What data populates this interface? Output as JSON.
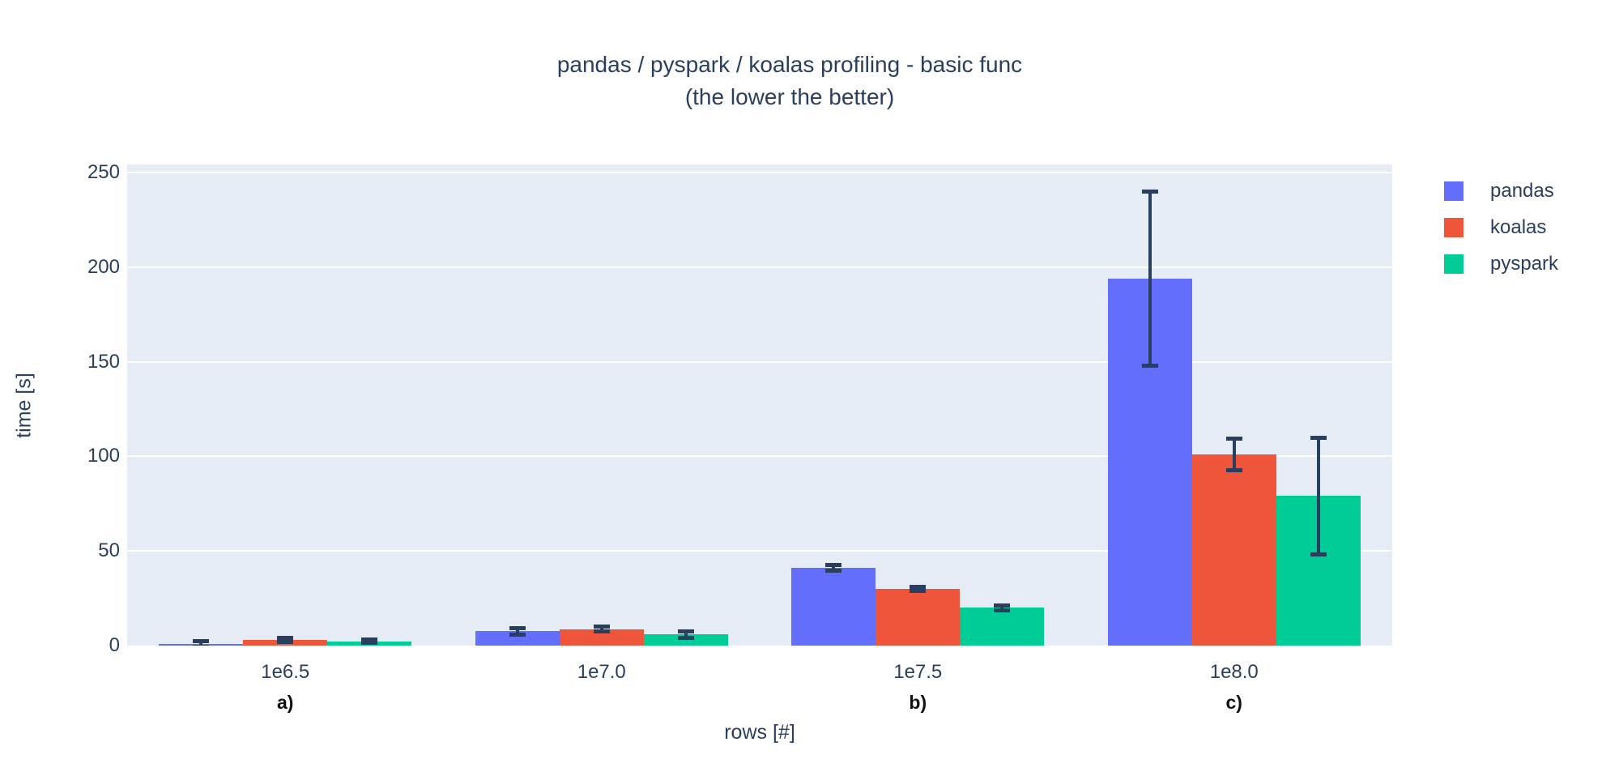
{
  "chart_data": {
    "type": "bar",
    "title": "pandas / pyspark / koalas profiling - basic func",
    "subtitle": "(the lower the better)",
    "xlabel": "rows [#]",
    "ylabel": "time [s]",
    "categories": [
      "1e6.5",
      "1e7.0",
      "1e7.5",
      "1e8.0"
    ],
    "yticks": [
      0,
      50,
      100,
      150,
      200,
      250
    ],
    "ylim": [
      0,
      254.3
    ],
    "grid": true,
    "legend_position": "right",
    "plot_bg_color": "#e5ecf6",
    "grid_color": "#ffffff",
    "text_color": "#2a3f5f",
    "annotation_color": "#111111",
    "error_bar_color": "#2a3f5f",
    "series": [
      {
        "name": "pandas",
        "color": "#636efa",
        "values": [
          0.8,
          7.7,
          41,
          194
        ],
        "error": [
          1.5,
          1.7,
          1.5,
          46
        ]
      },
      {
        "name": "koalas",
        "color": "#ef553b",
        "values": [
          3.0,
          8.7,
          30,
          101
        ],
        "error": [
          1.0,
          1.4,
          1.2,
          8.5
        ]
      },
      {
        "name": "pyspark",
        "color": "#00cc96",
        "values": [
          2.3,
          5.8,
          20,
          79
        ],
        "error": [
          1.0,
          1.9,
          1.2,
          31
        ]
      }
    ],
    "annotations": [
      {
        "label": "a)",
        "category_index": 0
      },
      {
        "label": "b)",
        "category_index": 2
      },
      {
        "label": "c)",
        "category_index": 3
      }
    ]
  }
}
